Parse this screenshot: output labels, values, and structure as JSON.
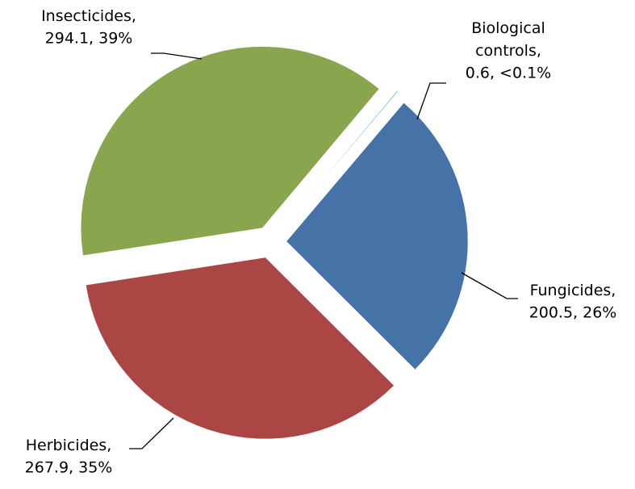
{
  "chart_data": {
    "type": "pie",
    "categories": [
      "Biological controls,",
      "Fungicides,",
      "Herbicides,",
      "Insecticides,"
    ],
    "values": [
      0.6,
      200.5,
      267.9,
      294.1
    ],
    "value_labels": [
      "0.6, <0.1%",
      "200.5, 26%",
      "267.9, 35%",
      "294.1, 39%"
    ],
    "colors": [
      "#4bacc6",
      "#4572a7",
      "#aa4643",
      "#89a54e"
    ]
  }
}
